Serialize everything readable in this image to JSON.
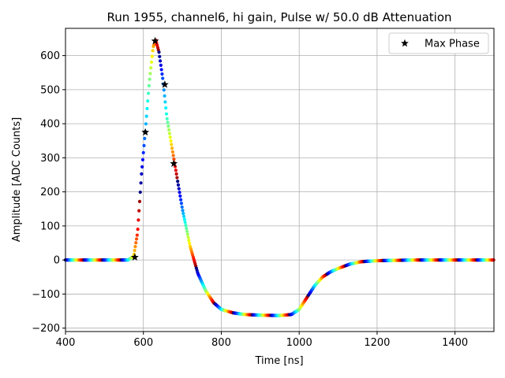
{
  "chart_data": {
    "type": "scatter",
    "title": "Run 1955, channel6, hi gain, Pulse w/ 50.0 dB Attenuation",
    "xlabel": "Time [ns]",
    "ylabel": "Amplitude [ADC Counts]",
    "xlim": [
      400,
      1500
    ],
    "ylim": [
      -210,
      680
    ],
    "xticks": [
      400,
      600,
      800,
      1000,
      1200,
      1400
    ],
    "yticks": [
      -200,
      -100,
      0,
      100,
      200,
      300,
      400,
      500,
      600
    ],
    "grid": true,
    "colormap": "jet",
    "legend": {
      "position": "top-right",
      "entries": [
        "Max Phase"
      ]
    },
    "pulse_curve": {
      "x": [
        400,
        500,
        560,
        575,
        585,
        595,
        605,
        615,
        625,
        632,
        640,
        650,
        660,
        680,
        700,
        720,
        740,
        760,
        780,
        800,
        830,
        860,
        900,
        950,
        980,
        1000,
        1020,
        1040,
        1060,
        1080,
        1100,
        1130,
        1160,
        1200,
        1300,
        1400,
        1500
      ],
      "y": [
        0,
        0,
        0,
        10,
        80,
        250,
        380,
        520,
        625,
        645,
        610,
        530,
        420,
        285,
        150,
        40,
        -40,
        -90,
        -125,
        -145,
        -155,
        -160,
        -162,
        -163,
        -160,
        -145,
        -110,
        -75,
        -50,
        -35,
        -25,
        -12,
        -5,
        -2,
        0,
        0,
        0
      ]
    },
    "series": [
      {
        "name": "Max Phase",
        "x": [
          578,
          605,
          630,
          655,
          678
        ],
        "y": [
          8,
          375,
          643,
          515,
          283
        ]
      }
    ]
  }
}
